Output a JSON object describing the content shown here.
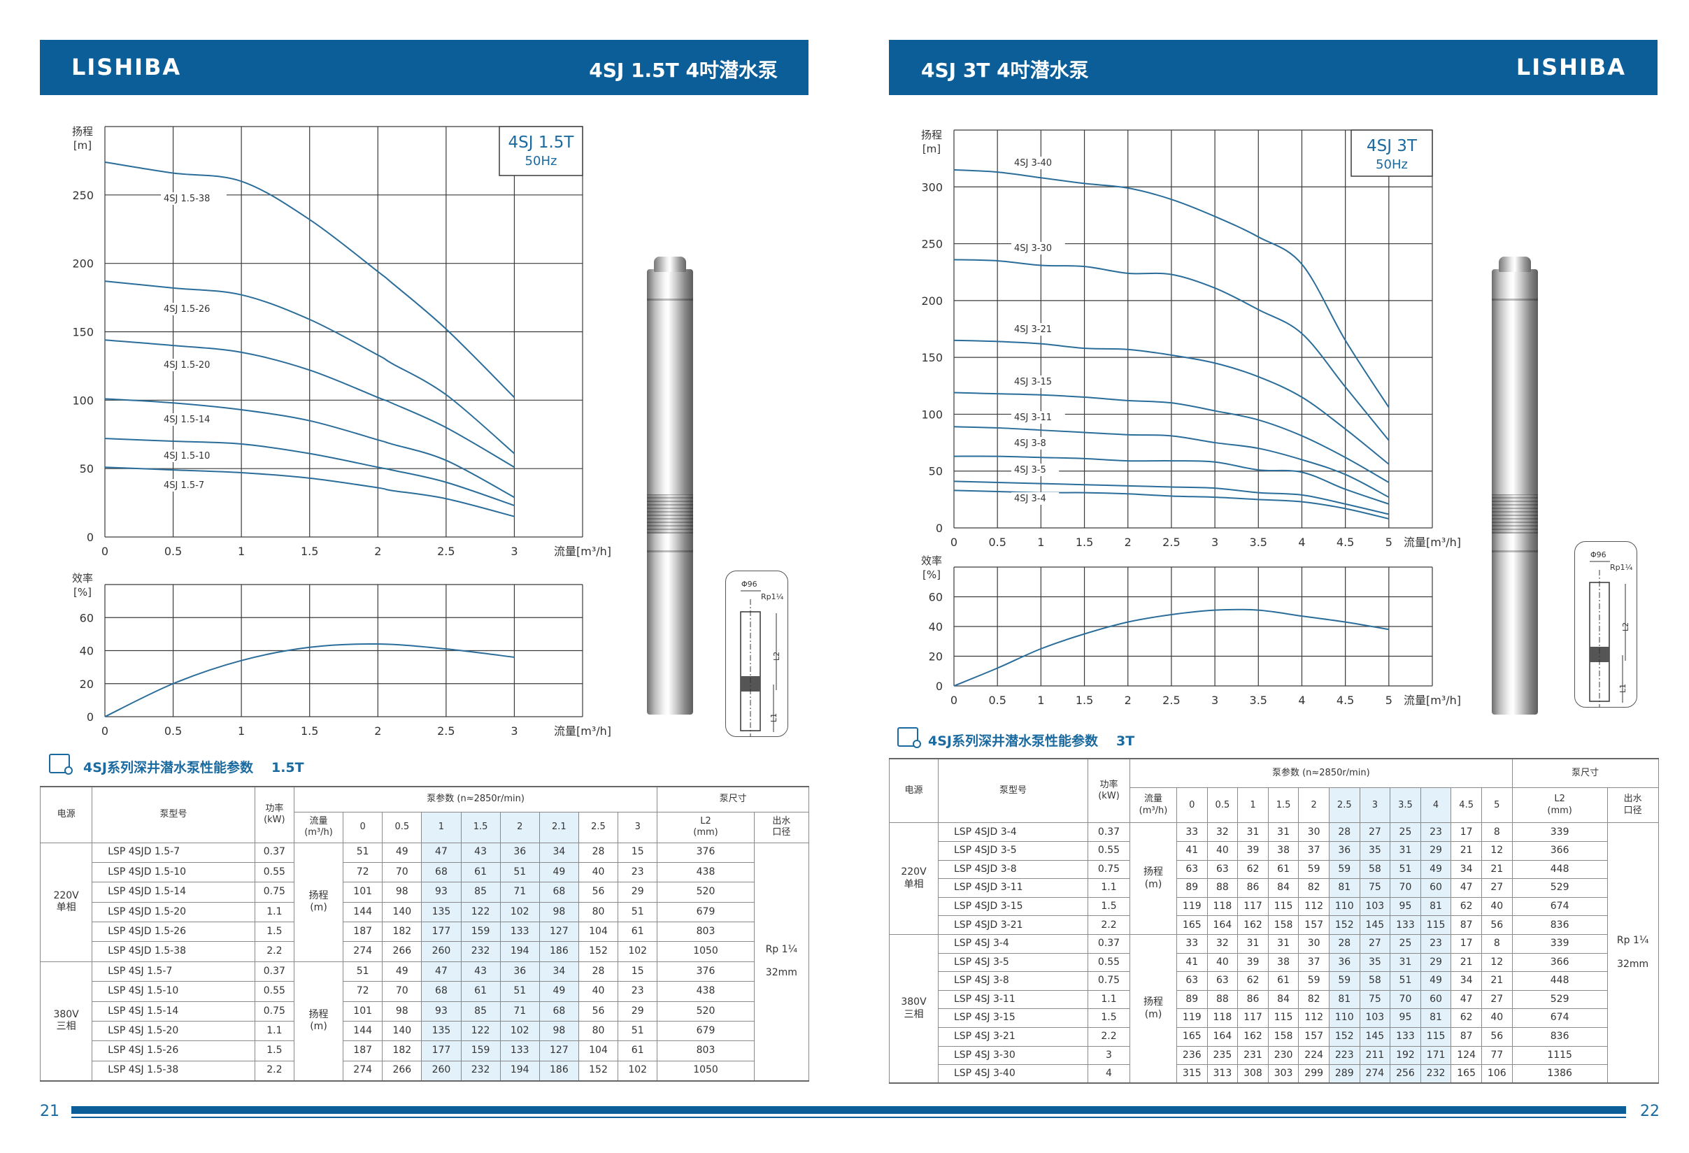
{
  "colors": {
    "brand": "#0b5e97",
    "curve": "#2a6d9a",
    "highlight": "#e3f1fb",
    "accent_text": "#1a6aa0"
  },
  "left": {
    "logo": "LISHIBA",
    "title": "4SJ 1.5T 4吋潜水泵",
    "page_number": "21",
    "drawing": {
      "diameter": "Φ96",
      "thread": "Rp1¼",
      "l2": "L2",
      "l1": "L1"
    },
    "table": {
      "title": "4SJ系列深井潜水泵性能参数",
      "suffix": "1.5T",
      "headers": {
        "source": "电源",
        "model": "泵型号",
        "power": "功率\n(kW)",
        "params": "泵参数      (n≈2850r/min)",
        "flow": "流量\n(m³/h)",
        "dims": "泵尺寸",
        "l2": "L2\n(mm)",
        "outlet": "出水\n口径"
      },
      "flows": [
        "0",
        "0.5",
        "1",
        "1.5",
        "2",
        "2.1",
        "2.5",
        "3"
      ],
      "highlight_flows": [
        "1",
        "1.5",
        "2",
        "2.1"
      ],
      "head_label": "扬程\n(m)",
      "outlet_value": "Rp 1¼\n32mm",
      "groups": [
        {
          "source": "220V\n单相",
          "rows": [
            {
              "model": "LSP 4SJD 1.5-7",
              "power": "0.37",
              "heads": [
                "51",
                "49",
                "47",
                "43",
                "36",
                "34",
                "28",
                "15"
              ],
              "l2": "376"
            },
            {
              "model": "LSP 4SJD 1.5-10",
              "power": "0.55",
              "heads": [
                "72",
                "70",
                "68",
                "61",
                "51",
                "49",
                "40",
                "23"
              ],
              "l2": "438"
            },
            {
              "model": "LSP 4SJD 1.5-14",
              "power": "0.75",
              "heads": [
                "101",
                "98",
                "93",
                "85",
                "71",
                "68",
                "56",
                "29"
              ],
              "l2": "520"
            },
            {
              "model": "LSP 4SJD 1.5-20",
              "power": "1.1",
              "heads": [
                "144",
                "140",
                "135",
                "122",
                "102",
                "98",
                "80",
                "51"
              ],
              "l2": "679"
            },
            {
              "model": "LSP 4SJD 1.5-26",
              "power": "1.5",
              "heads": [
                "187",
                "182",
                "177",
                "159",
                "133",
                "127",
                "104",
                "61"
              ],
              "l2": "803"
            },
            {
              "model": "LSP 4SJD 1.5-38",
              "power": "2.2",
              "heads": [
                "274",
                "266",
                "260",
                "232",
                "194",
                "186",
                "152",
                "102"
              ],
              "l2": "1050"
            }
          ]
        },
        {
          "source": "380V\n三相",
          "rows": [
            {
              "model": "LSP 4SJ 1.5-7",
              "power": "0.37",
              "heads": [
                "51",
                "49",
                "47",
                "43",
                "36",
                "34",
                "28",
                "15"
              ],
              "l2": "376"
            },
            {
              "model": "LSP 4SJ 1.5-10",
              "power": "0.55",
              "heads": [
                "72",
                "70",
                "68",
                "61",
                "51",
                "49",
                "40",
                "23"
              ],
              "l2": "438"
            },
            {
              "model": "LSP 4SJ 1.5-14",
              "power": "0.75",
              "heads": [
                "101",
                "98",
                "93",
                "85",
                "71",
                "68",
                "56",
                "29"
              ],
              "l2": "520"
            },
            {
              "model": "LSP 4SJ 1.5-20",
              "power": "1.1",
              "heads": [
                "144",
                "140",
                "135",
                "122",
                "102",
                "98",
                "80",
                "51"
              ],
              "l2": "679"
            },
            {
              "model": "LSP 4SJ 1.5-26",
              "power": "1.5",
              "heads": [
                "187",
                "182",
                "177",
                "159",
                "133",
                "127",
                "104",
                "61"
              ],
              "l2": "803"
            },
            {
              "model": "LSP 4SJ 1.5-38",
              "power": "2.2",
              "heads": [
                "274",
                "266",
                "260",
                "232",
                "194",
                "186",
                "152",
                "102"
              ],
              "l2": "1050"
            }
          ]
        }
      ]
    }
  },
  "right": {
    "logo": "LISHIBA",
    "title": "4SJ 3T 4吋潜水泵",
    "page_number": "22",
    "drawing": {
      "diameter": "Φ96",
      "thread": "Rp1¼",
      "l2": "L2",
      "l1": "L1"
    },
    "table": {
      "title": "4SJ系列深井潜水泵性能参数",
      "suffix": "3T",
      "headers": {
        "source": "电源",
        "model": "泵型号",
        "power": "功率\n(kW)",
        "params": "泵参数      (n≈2850r/min)",
        "flow": "流量\n(m³/h)",
        "dims": "泵尺寸",
        "l2": "L2\n(mm)",
        "outlet": "出水\n口径"
      },
      "flows": [
        "0",
        "0.5",
        "1",
        "1.5",
        "2",
        "2.5",
        "3",
        "3.5",
        "4",
        "4.5",
        "5"
      ],
      "highlight_flows": [
        "2.5",
        "3",
        "3.5",
        "4"
      ],
      "head_label": "扬程\n(m)",
      "outlet_value": "Rp 1¼\n32mm",
      "groups": [
        {
          "source": "220V\n单相",
          "rows": [
            {
              "model": "LSP 4SJD 3-4",
              "power": "0.37",
              "heads": [
                "33",
                "32",
                "31",
                "31",
                "30",
                "28",
                "27",
                "25",
                "23",
                "17",
                "8"
              ],
              "l2": "339"
            },
            {
              "model": "LSP 4SJD 3-5",
              "power": "0.55",
              "heads": [
                "41",
                "40",
                "39",
                "38",
                "37",
                "36",
                "35",
                "31",
                "29",
                "21",
                "12"
              ],
              "l2": "366"
            },
            {
              "model": "LSP 4SJD 3-8",
              "power": "0.75",
              "heads": [
                "63",
                "63",
                "62",
                "61",
                "59",
                "59",
                "58",
                "51",
                "49",
                "34",
                "21"
              ],
              "l2": "448"
            },
            {
              "model": "LSP 4SJD 3-11",
              "power": "1.1",
              "heads": [
                "89",
                "88",
                "86",
                "84",
                "82",
                "81",
                "75",
                "70",
                "60",
                "47",
                "27"
              ],
              "l2": "529"
            },
            {
              "model": "LSP 4SJD 3-15",
              "power": "1.5",
              "heads": [
                "119",
                "118",
                "117",
                "115",
                "112",
                "110",
                "103",
                "95",
                "81",
                "62",
                "40"
              ],
              "l2": "674"
            },
            {
              "model": "LSP 4SJD 3-21",
              "power": "2.2",
              "heads": [
                "165",
                "164",
                "162",
                "158",
                "157",
                "152",
                "145",
                "133",
                "115",
                "87",
                "56"
              ],
              "l2": "836"
            }
          ]
        },
        {
          "source": "380V\n三相",
          "rows": [
            {
              "model": "LSP 4SJ 3-4",
              "power": "0.37",
              "heads": [
                "33",
                "32",
                "31",
                "31",
                "30",
                "28",
                "27",
                "25",
                "23",
                "17",
                "8"
              ],
              "l2": "339"
            },
            {
              "model": "LSP 4SJ 3-5",
              "power": "0.55",
              "heads": [
                "41",
                "40",
                "39",
                "38",
                "37",
                "36",
                "35",
                "31",
                "29",
                "21",
                "12"
              ],
              "l2": "366"
            },
            {
              "model": "LSP 4SJ 3-8",
              "power": "0.75",
              "heads": [
                "63",
                "63",
                "62",
                "61",
                "59",
                "59",
                "58",
                "51",
                "49",
                "34",
                "21"
              ],
              "l2": "448"
            },
            {
              "model": "LSP 4SJ 3-11",
              "power": "1.1",
              "heads": [
                "89",
                "88",
                "86",
                "84",
                "82",
                "81",
                "75",
                "70",
                "60",
                "47",
                "27"
              ],
              "l2": "529"
            },
            {
              "model": "LSP 4SJ 3-15",
              "power": "1.5",
              "heads": [
                "119",
                "118",
                "117",
                "115",
                "112",
                "110",
                "103",
                "95",
                "81",
                "62",
                "40"
              ],
              "l2": "674"
            },
            {
              "model": "LSP 4SJ 3-21",
              "power": "2.2",
              "heads": [
                "165",
                "164",
                "162",
                "158",
                "157",
                "152",
                "145",
                "133",
                "115",
                "87",
                "56"
              ],
              "l2": "836"
            },
            {
              "model": "LSP 4SJ 3-30",
              "power": "3",
              "heads": [
                "236",
                "235",
                "231",
                "230",
                "224",
                "223",
                "211",
                "192",
                "171",
                "124",
                "77"
              ],
              "l2": "1115"
            },
            {
              "model": "LSP 4SJ 3-40",
              "power": "4",
              "heads": [
                "315",
                "313",
                "308",
                "303",
                "299",
                "289",
                "274",
                "256",
                "232",
                "165",
                "106"
              ],
              "l2": "1386"
            }
          ]
        }
      ]
    }
  },
  "chart_data": [
    {
      "type": "line",
      "title": "4SJ 1.5T",
      "subtitle": "50Hz",
      "ylabel": "扬程",
      "yunit": "[m]",
      "xlabel": "流量[m³/h]",
      "xlim": [
        0,
        3.5
      ],
      "ylim": [
        0,
        300
      ],
      "grid": true,
      "legend": "top-right",
      "xticks": [
        0,
        0.5,
        1,
        1.5,
        2,
        2.5,
        3
      ],
      "yticks": [
        0,
        50,
        100,
        150,
        200,
        250
      ],
      "x": [
        0,
        0.5,
        1,
        1.5,
        2,
        2.1,
        2.5,
        3
      ],
      "series": [
        {
          "name": "4SJ 1.5-7",
          "values": [
            51,
            49,
            47,
            43,
            36,
            34,
            28,
            15
          ]
        },
        {
          "name": "4SJ 1.5-10",
          "values": [
            72,
            70,
            68,
            61,
            51,
            49,
            40,
            23
          ]
        },
        {
          "name": "4SJ 1.5-14",
          "values": [
            101,
            98,
            93,
            85,
            71,
            68,
            56,
            29
          ]
        },
        {
          "name": "4SJ 1.5-20",
          "values": [
            144,
            140,
            135,
            122,
            102,
            98,
            80,
            51
          ]
        },
        {
          "name": "4SJ 1.5-26",
          "values": [
            187,
            182,
            177,
            159,
            133,
            127,
            104,
            61
          ]
        },
        {
          "name": "4SJ 1.5-38",
          "values": [
            274,
            266,
            260,
            232,
            194,
            186,
            152,
            102
          ]
        }
      ]
    },
    {
      "type": "line",
      "ylabel": "效率",
      "yunit": "[%]",
      "xlabel": "流量[m³/h]",
      "xlim": [
        0,
        3.5
      ],
      "ylim": [
        0,
        80
      ],
      "grid": true,
      "xticks": [
        0,
        0.5,
        1,
        1.5,
        2,
        2.5,
        3
      ],
      "yticks": [
        0,
        20,
        40,
        60
      ],
      "x": [
        0,
        0.5,
        1,
        1.5,
        2,
        2.5,
        3
      ],
      "series": [
        {
          "values": [
            0,
            20,
            34,
            42,
            44,
            41,
            36
          ]
        }
      ]
    },
    {
      "type": "line",
      "title": "4SJ 3T",
      "subtitle": "50Hz",
      "ylabel": "扬程",
      "yunit": "[m]",
      "xlabel": "流量[m³/h]",
      "xlim": [
        0,
        5.5
      ],
      "ylim": [
        0,
        350
      ],
      "grid": true,
      "legend": "top-right",
      "xticks": [
        0,
        0.5,
        1,
        1.5,
        2,
        2.5,
        3,
        3.5,
        4,
        4.5,
        5
      ],
      "yticks": [
        0,
        50,
        100,
        150,
        200,
        250,
        300
      ],
      "x": [
        0,
        0.5,
        1,
        1.5,
        2,
        2.5,
        3,
        3.5,
        4,
        4.5,
        5
      ],
      "series": [
        {
          "name": "4SJ 3-4",
          "values": [
            33,
            32,
            31,
            31,
            30,
            28,
            27,
            25,
            23,
            17,
            8
          ]
        },
        {
          "name": "4SJ 3-5",
          "values": [
            41,
            40,
            39,
            38,
            37,
            36,
            35,
            31,
            29,
            21,
            12
          ]
        },
        {
          "name": "4SJ 3-8",
          "values": [
            63,
            63,
            62,
            61,
            59,
            59,
            58,
            51,
            49,
            34,
            21
          ]
        },
        {
          "name": "4SJ 3-11",
          "values": [
            89,
            88,
            86,
            84,
            82,
            81,
            75,
            70,
            60,
            47,
            27
          ]
        },
        {
          "name": "4SJ 3-15",
          "values": [
            119,
            118,
            117,
            115,
            112,
            110,
            103,
            95,
            81,
            62,
            40
          ]
        },
        {
          "name": "4SJ 3-21",
          "values": [
            165,
            164,
            162,
            158,
            157,
            152,
            145,
            133,
            115,
            87,
            56
          ]
        },
        {
          "name": "4SJ 3-30",
          "values": [
            236,
            235,
            231,
            230,
            224,
            223,
            211,
            192,
            171,
            124,
            77
          ]
        },
        {
          "name": "4SJ 3-40",
          "values": [
            315,
            313,
            308,
            303,
            299,
            289,
            274,
            256,
            232,
            165,
            106
          ]
        }
      ]
    },
    {
      "type": "line",
      "ylabel": "效率",
      "yunit": "[%]",
      "xlabel": "流量[m³/h]",
      "xlim": [
        0,
        5.5
      ],
      "ylim": [
        0,
        80
      ],
      "grid": true,
      "xticks": [
        0,
        0.5,
        1,
        1.5,
        2,
        2.5,
        3,
        3.5,
        4,
        4.5,
        5
      ],
      "yticks": [
        0,
        20,
        40,
        60
      ],
      "x": [
        0,
        0.5,
        1,
        1.5,
        2,
        2.5,
        3,
        3.5,
        4,
        4.5,
        5
      ],
      "series": [
        {
          "values": [
            0,
            12,
            25,
            35,
            43,
            48,
            51,
            51,
            47,
            43,
            38
          ]
        }
      ]
    }
  ]
}
